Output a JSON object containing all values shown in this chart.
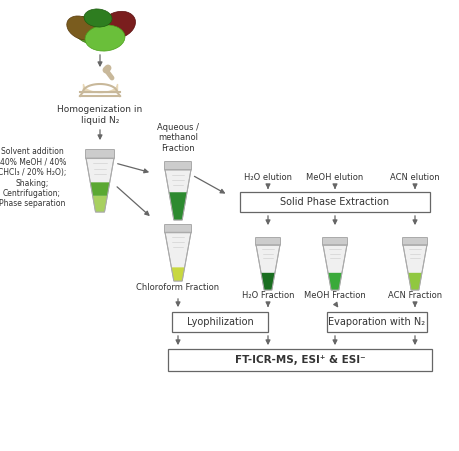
{
  "bg_color": "#ffffff",
  "arrow_color": "#666666",
  "box_color": "#ffffff",
  "box_edge": "#666666",
  "text_color": "#333333",
  "labels": {
    "homogenization": "Homogenization in\nliquid N₂",
    "solvent_addition": "Solvent addition\n(40% MeOH / 40%\nCHCl₃ / 20% H₂O);\nShaking;\nCentrifugation;\nPhase separation",
    "aqueous": "Aqueous /\nmethanol\nFraction",
    "spe": "Solid Phase Extraction",
    "h2o_elution": "H₂O elution",
    "meoh_elution": "MeOH elution",
    "acn_elution": "ACN elution",
    "chloroform": "Chloroform Fraction",
    "h2o_fraction": "H₂O Fraction",
    "meoh_fraction": "MeOH Fraction",
    "acn_fraction": "ACN Fraction",
    "lyophilization": "Lyophilization",
    "evaporation": "Evaporation with N₂",
    "fticr": "FT-ICR-MS, ESI⁺ & ESI⁻"
  }
}
